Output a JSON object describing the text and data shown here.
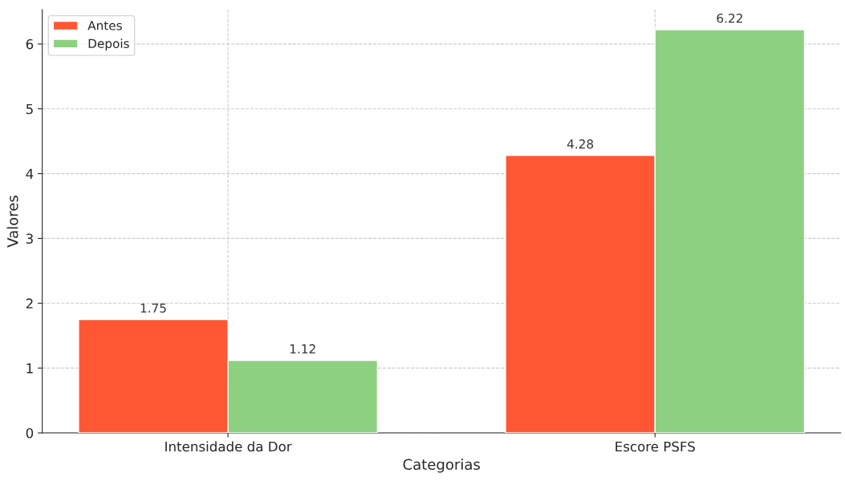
{
  "chart_data": {
    "type": "bar",
    "xlabel": "Categorias",
    "ylabel": "Valores",
    "categories": [
      "Intensidade da Dor",
      "Escore PSFS"
    ],
    "series": [
      {
        "name": "Antes",
        "color": "#ff5733",
        "values": [
          1.75,
          4.28
        ]
      },
      {
        "name": "Depois",
        "color": "#8ed081",
        "values": [
          1.12,
          6.22
        ]
      }
    ],
    "ylim": [
      0,
      6.53
    ],
    "yticks": [
      0,
      1,
      2,
      3,
      4,
      5,
      6
    ],
    "grid": true,
    "legend": "top left",
    "data_labels": true
  }
}
